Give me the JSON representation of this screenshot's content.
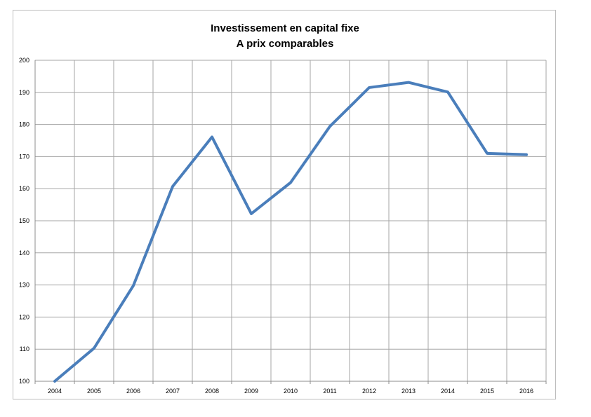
{
  "chart_data": {
    "type": "line",
    "title_lines": [
      "Investissement en capital fixe",
      "A prix comparables"
    ],
    "categories": [
      "2004",
      "2005",
      "2006",
      "2007",
      "2008",
      "2009",
      "2010",
      "2011",
      "2012",
      "2013",
      "2014",
      "2015",
      "2016"
    ],
    "series": [
      {
        "values": [
          100,
          110.3,
          129.8,
          160.7,
          176.1,
          152.2,
          161.9,
          179.4,
          191.5,
          193.1,
          190.1,
          171.0,
          170.6
        ],
        "color": "#4a7ebb"
      }
    ],
    "ylim": [
      100,
      200
    ],
    "yticks": [
      "100",
      "110",
      "120",
      "130",
      "140",
      "150",
      "160",
      "170",
      "180",
      "190",
      "200"
    ],
    "grid": true,
    "legend": "none"
  }
}
